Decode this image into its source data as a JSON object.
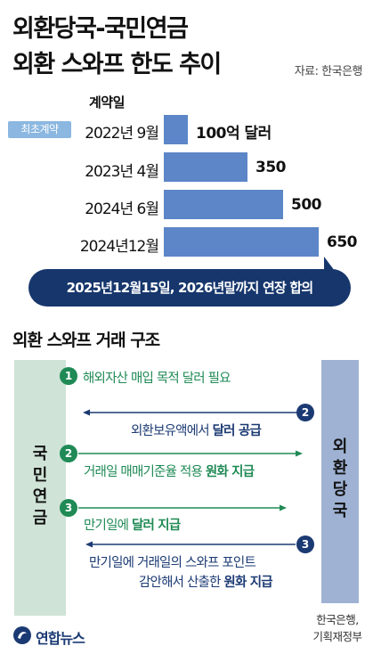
{
  "title_line1": "외환당국-국민연금",
  "title_line2": "외환 스와프 한도 추이",
  "source": "자료: 한국은행",
  "chart_data": {
    "type": "bar",
    "orientation": "horizontal",
    "column_header": "계약일",
    "first_contract_badge": "최초계약",
    "unit_label": "억 달러",
    "categories": [
      "2022년 9월",
      "2023년 4월",
      "2024년 6월",
      "2024년12월"
    ],
    "values": [
      100,
      350,
      500,
      650
    ],
    "value_labels": [
      "100억 달러",
      "350",
      "500",
      "650"
    ],
    "bar_color": "#5c86c7",
    "xlim": [
      0,
      650
    ]
  },
  "note": "2025년12월15일, 2026년말까지 연장 합의",
  "structure": {
    "title": "외환 스와프 거래 구조",
    "left_party": [
      "국",
      "민",
      "연",
      "금"
    ],
    "right_party": [
      "외",
      "환",
      "당",
      "국"
    ],
    "steps": [
      {
        "num": "1",
        "text": "해외자산 매입 목적 달러 필요"
      },
      {
        "num": "2",
        "text_plain": "외환보유액에서 ",
        "text_bold": "달러 공급"
      },
      {
        "num": "2",
        "text_plain": "거래일 매매기준율 적용 ",
        "text_bold": "원화 지급"
      },
      {
        "num": "3",
        "text_plain": "만기일에 ",
        "text_bold": "달러 지급"
      },
      {
        "num": "3",
        "line1": "만기일에 거래일의 스와프 포인트",
        "line2_plain": "감안해서 산출한 ",
        "line2_bold": "원화 지급"
      }
    ],
    "source_line1": "한국은행,",
    "source_line2": "기획재정부"
  },
  "brand": "연합뉴스",
  "colors": {
    "bar": "#5c86c7",
    "badge": "#8bb7e0",
    "note": "#16366c",
    "green": "#1f8a55",
    "navy": "#1b3a73",
    "left_col": "#cfe3d7",
    "right_col": "#9fb2d4"
  }
}
